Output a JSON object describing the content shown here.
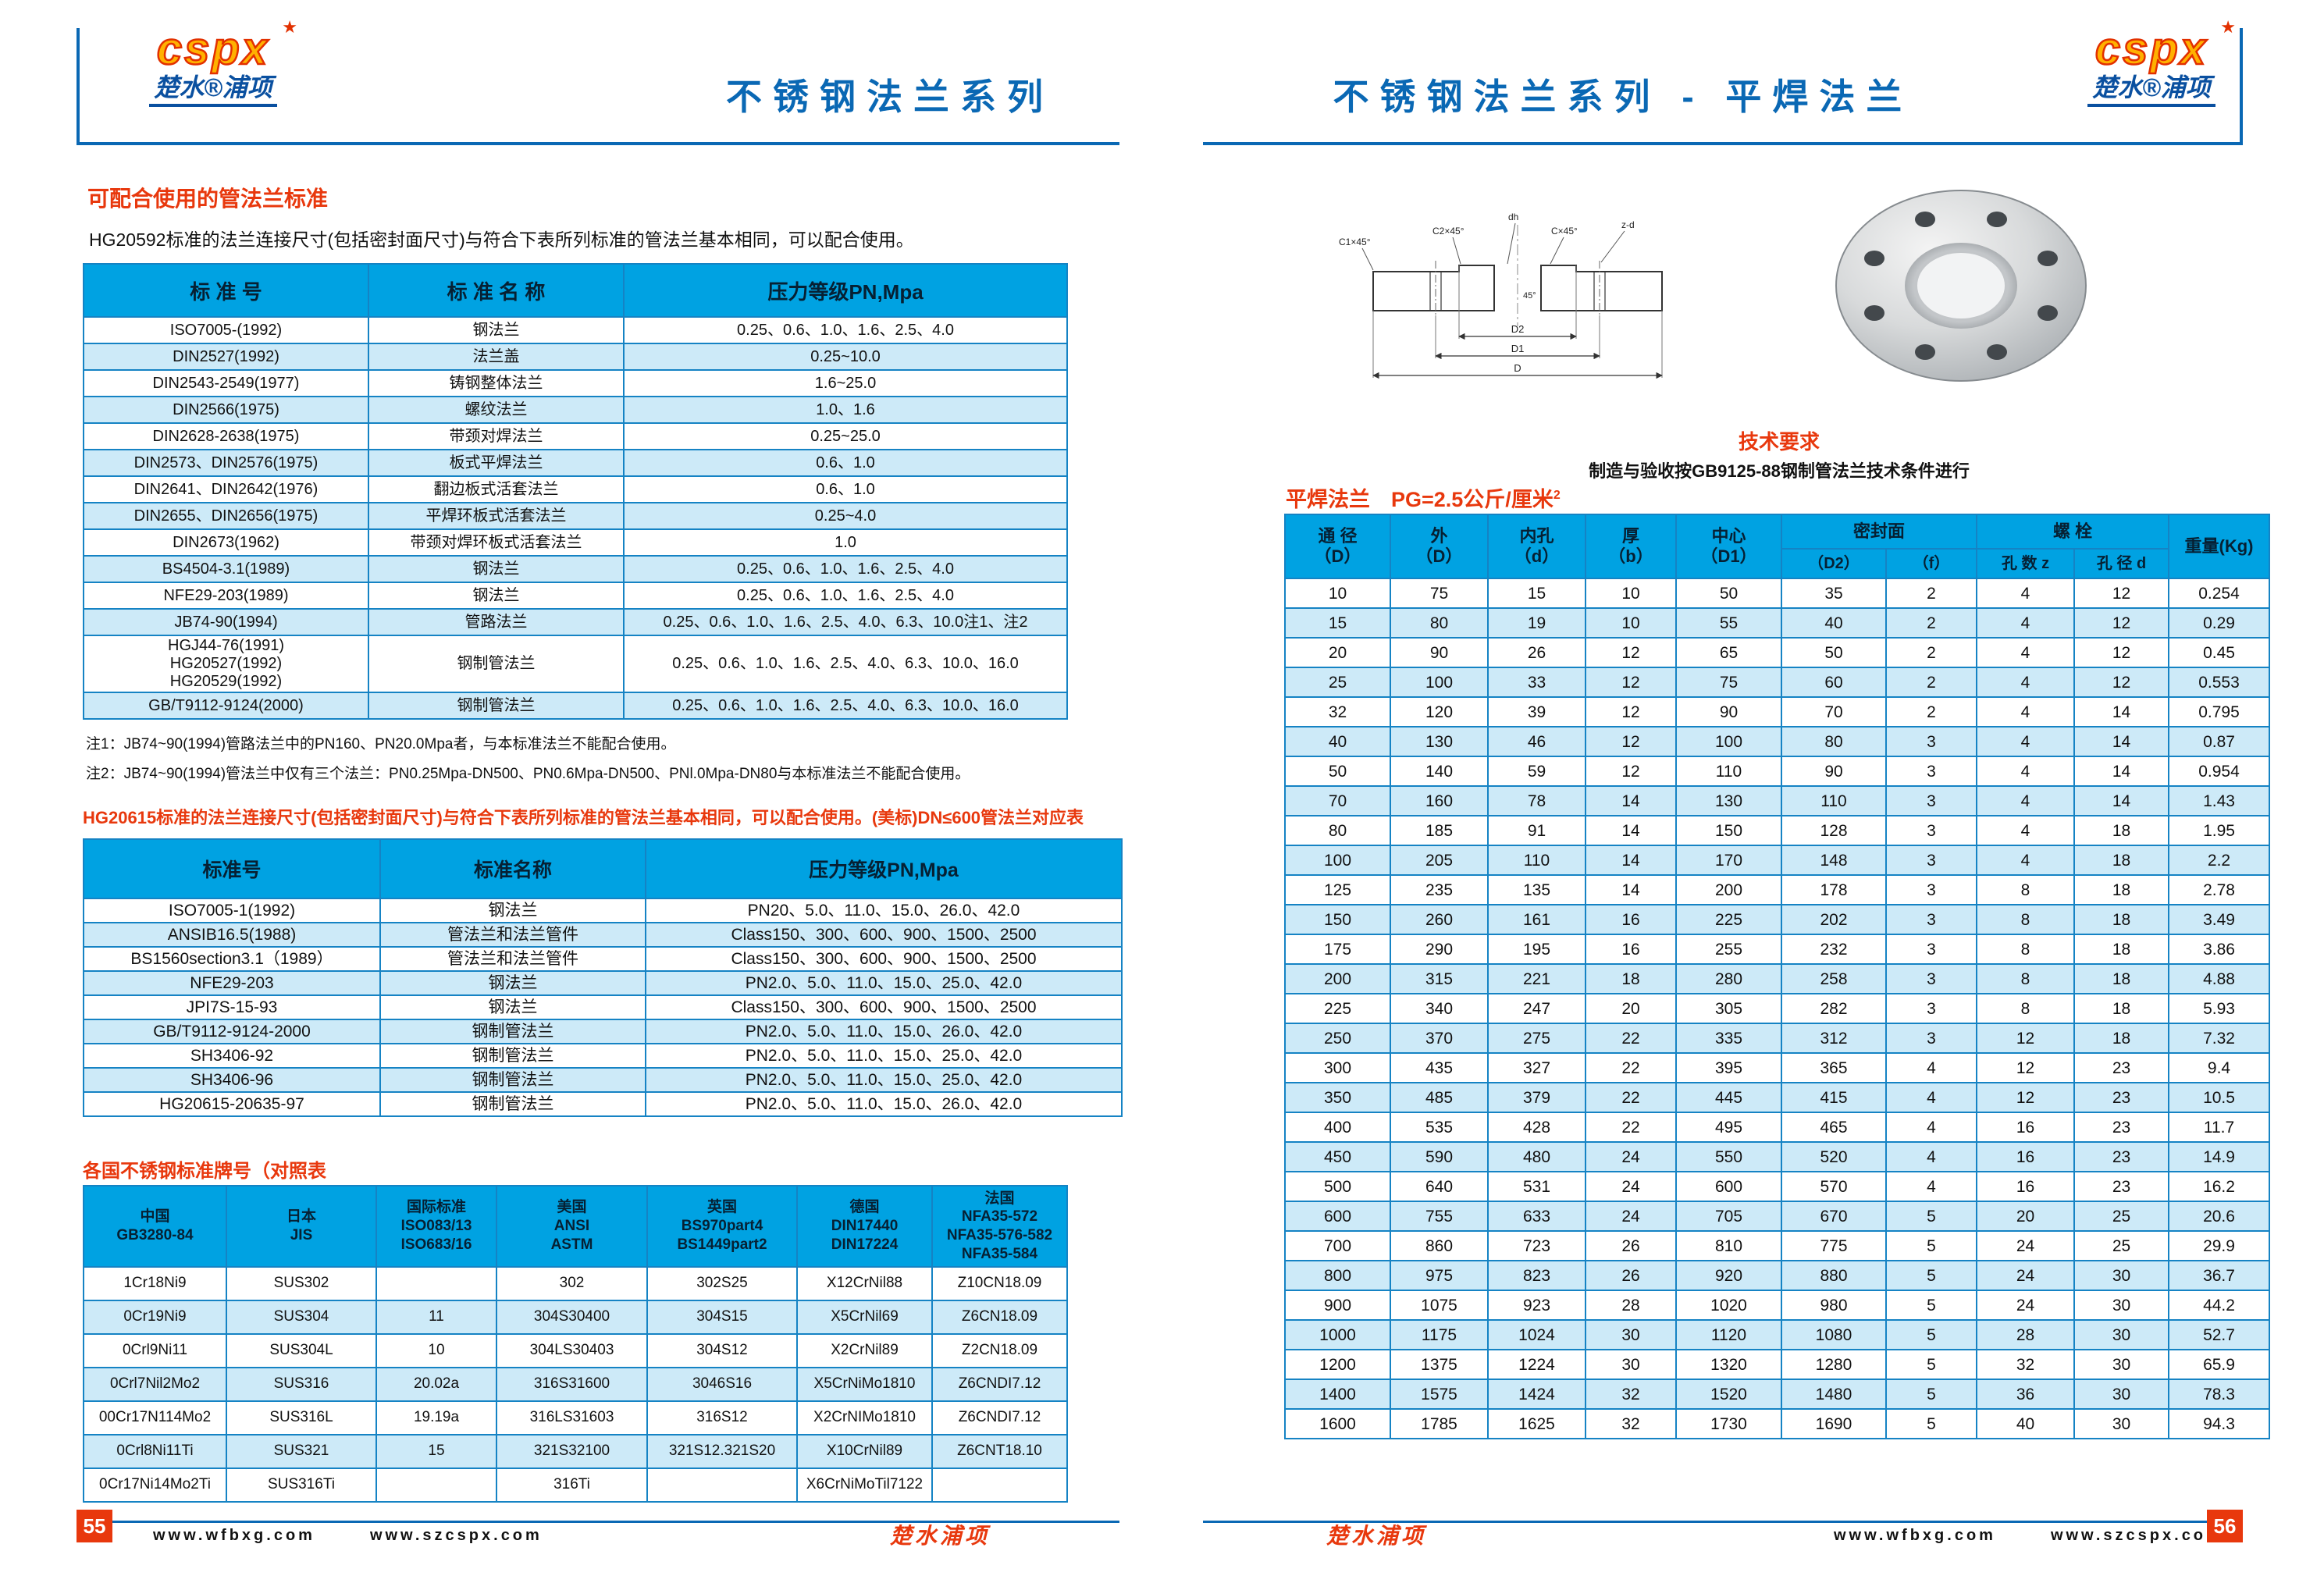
{
  "brand": {
    "logo_text": "cspx",
    "logo_star": "★",
    "logo_sub": "楚水®浦项",
    "footer_brand": "楚水浦项",
    "url1": "www.wfbxg.com",
    "url2": "www.szcspx.com"
  },
  "left": {
    "page_number": "55",
    "title": "不锈钢法兰系列",
    "section1": {
      "heading": "可配合使用的管法兰标准",
      "intro": "HG20592标准的法兰连接尺寸(包括密封面尺寸)与符合下表所列标准的管法兰基本相同，可以配合使用。",
      "headers": [
        "标  准  号",
        "标 准 名 称",
        "压力等级PN,Mpa"
      ],
      "rows": [
        [
          "ISO7005-(1992)",
          "钢法兰",
          "0.25、0.6、1.0、1.6、2.5、4.0"
        ],
        [
          "DIN2527(1992)",
          "法兰盖",
          "0.25~10.0"
        ],
        [
          "DIN2543-2549(1977)",
          "铸钢整体法兰",
          "1.6~25.0"
        ],
        [
          "DIN2566(1975)",
          "螺纹法兰",
          "1.0、1.6"
        ],
        [
          "DIN2628-2638(1975)",
          "带颈对焊法兰",
          "0.25~25.0"
        ],
        [
          "DIN2573、DIN2576(1975)",
          "板式平焊法兰",
          "0.6、1.0"
        ],
        [
          "DIN2641、DIN2642(1976)",
          "翻边板式活套法兰",
          "0.6、1.0"
        ],
        [
          "DIN2655、DIN2656(1975)",
          "平焊环板式活套法兰",
          "0.25~4.0"
        ],
        [
          "DIN2673(1962)",
          "带颈对焊环板式活套法兰",
          "1.0"
        ],
        [
          "BS4504-3.1(1989)",
          "钢法兰",
          "0.25、0.6、1.0、1.6、2.5、4.0"
        ],
        [
          "NFE29-203(1989)",
          "钢法兰",
          "0.25、0.6、1.0、1.6、2.5、4.0"
        ],
        [
          "JB74-90(1994)",
          "管路法兰",
          "0.25、0.6、1.0、1.6、2.5、4.0、6.3、10.0注1、注2"
        ],
        [
          "HGJ44-76(1991)\nHG20527(1992)\nHG20529(1992)",
          "钢制管法兰",
          "0.25、0.6、1.0、1.6、2.5、4.0、6.3、10.0、16.0"
        ],
        [
          "GB/T9112-9124(2000)",
          "钢制管法兰",
          "0.25、0.6、1.0、1.6、2.5、4.0、6.3、10.0、16.0"
        ]
      ],
      "note1": "注1：JB74~90(1994)管路法兰中的PN160、PN20.0Mpa者，与本标准法兰不能配合使用。",
      "note2": "注2：JB74~90(1994)管法兰中仅有三个法兰：PN0.25Mpa-DN500、PN0.6Mpa-DN500、PNl.0Mpa-DN80与本标准法兰不能配合使用。"
    },
    "section2": {
      "heading": "HG20615标准的法兰连接尺寸(包括密封面尺寸)与符合下表所列标准的管法兰基本相同，可以配合使用。(美标)DN≤600管法兰对应表",
      "headers": [
        "标准号",
        "标准名称",
        "压力等级PN,Mpa"
      ],
      "rows": [
        [
          "ISO7005-1(1992)",
          "钢法兰",
          "PN20、5.0、11.0、15.0、26.0、42.0"
        ],
        [
          "ANSIB16.5(1988)",
          "管法兰和法兰管件",
          "Class150、300、600、900、1500、2500"
        ],
        [
          "BS1560section3.1（1989）",
          "管法兰和法兰管件",
          "Class150、300、600、900、1500、2500"
        ],
        [
          "NFE29-203",
          "钢法兰",
          "PN2.0、5.0、11.0、15.0、25.0、42.0"
        ],
        [
          "JPI7S-15-93",
          "钢法兰",
          "Class150、300、600、900、1500、2500"
        ],
        [
          "GB/T9112-9124-2000",
          "钢制管法兰",
          "PN2.0、5.0、11.0、15.0、26.0、42.0"
        ],
        [
          "SH3406-92",
          "钢制管法兰",
          "PN2.0、5.0、11.0、15.0、25.0、42.0"
        ],
        [
          "SH3406-96",
          "钢制管法兰",
          "PN2.0、5.0、11.0、15.0、25.0、42.0"
        ],
        [
          "HG20615-20635-97",
          "钢制管法兰",
          "PN2.0、5.0、11.0、15.0、26.0、42.0"
        ]
      ]
    },
    "section3": {
      "heading": "各国不锈钢标准牌号（对照表",
      "headers": [
        "中国\nGB3280-84",
        "日本\nJIS",
        "国际标准\nISO083/13\nISO683/16",
        "美国\nANSI\nASTM",
        "英国\nBS970part4\nBS1449part2",
        "德国\nDIN17440\nDIN17224",
        "法国\nNFA35-572\nNFA35-576-582\nNFA35-584"
      ],
      "rows": [
        [
          "1Cr18Ni9",
          "SUS302",
          "",
          "302",
          "302S25",
          "X12CrNil88",
          "Z10CN18.09"
        ],
        [
          "0Cr19Ni9",
          "SUS304",
          "11",
          "304S30400",
          "304S15",
          "X5CrNil69",
          "Z6CN18.09"
        ],
        [
          "0Crl9Ni11",
          "SUS304L",
          "10",
          "304LS30403",
          "304S12",
          "X2CrNil89",
          "Z2CN18.09"
        ],
        [
          "0Crl7Nil2Mo2",
          "SUS316",
          "20.02a",
          "316S31600",
          "3046S16",
          "X5CrNiMo1810",
          "Z6CNDI7.12"
        ],
        [
          "00Cr17N114Mo2",
          "SUS316L",
          "19.19a",
          "316LS31603",
          "316S12",
          "X2CrNIMo1810",
          "Z6CNDI7.12"
        ],
        [
          "0Crl8Ni11Ti",
          "SUS321",
          "15",
          "321S32100",
          "321S12.321S20",
          "X10CrNil89",
          "Z6CNT18.10"
        ],
        [
          "0Cr17Ni14Mo2Ti",
          "SUS316Ti",
          "",
          "316Ti",
          "",
          "X6CrNiMoTil7122",
          ""
        ]
      ]
    }
  },
  "right": {
    "page_number": "56",
    "title": "不锈钢法兰系列 - 平焊法兰",
    "tech_heading": "技术要求",
    "tech_text": "制造与验收按GB9125-88钢制管法兰技术条件进行",
    "table_heading": "平焊法兰　PG=2.5公斤/厘米",
    "table_heading_sup": "2",
    "drawing": {
      "dh": "dh",
      "zd": "z-d",
      "c1": "C1×45°",
      "c2": "C2×45°",
      "c": "C×45°",
      "deg": "45°",
      "d2": "D2",
      "d1": "D1",
      "d": "D"
    },
    "table": {
      "h_dn": "通 径\n（D）",
      "h_od": "外\n（D）",
      "h_id": "内孔\n（d）",
      "h_b": "厚\n（b）",
      "h_d1": "中心\n（D1）",
      "h_seal": "密封面",
      "h_d2": "（D2）",
      "h_f": "（f）",
      "h_bolt": "螺 栓",
      "h_zn": "孔 数 z",
      "h_zd": "孔 径 d",
      "h_wt": "重量(Kg)",
      "rows": [
        [
          "10",
          "75",
          "15",
          "10",
          "50",
          "35",
          "2",
          "4",
          "12",
          "0.254"
        ],
        [
          "15",
          "80",
          "19",
          "10",
          "55",
          "40",
          "2",
          "4",
          "12",
          "0.29"
        ],
        [
          "20",
          "90",
          "26",
          "12",
          "65",
          "50",
          "2",
          "4",
          "12",
          "0.45"
        ],
        [
          "25",
          "100",
          "33",
          "12",
          "75",
          "60",
          "2",
          "4",
          "12",
          "0.553"
        ],
        [
          "32",
          "120",
          "39",
          "12",
          "90",
          "70",
          "2",
          "4",
          "14",
          "0.795"
        ],
        [
          "40",
          "130",
          "46",
          "12",
          "100",
          "80",
          "3",
          "4",
          "14",
          "0.87"
        ],
        [
          "50",
          "140",
          "59",
          "12",
          "110",
          "90",
          "3",
          "4",
          "14",
          "0.954"
        ],
        [
          "70",
          "160",
          "78",
          "14",
          "130",
          "110",
          "3",
          "4",
          "14",
          "1.43"
        ],
        [
          "80",
          "185",
          "91",
          "14",
          "150",
          "128",
          "3",
          "4",
          "18",
          "1.95"
        ],
        [
          "100",
          "205",
          "110",
          "14",
          "170",
          "148",
          "3",
          "4",
          "18",
          "2.2"
        ],
        [
          "125",
          "235",
          "135",
          "14",
          "200",
          "178",
          "3",
          "8",
          "18",
          "2.78"
        ],
        [
          "150",
          "260",
          "161",
          "16",
          "225",
          "202",
          "3",
          "8",
          "18",
          "3.49"
        ],
        [
          "175",
          "290",
          "195",
          "16",
          "255",
          "232",
          "3",
          "8",
          "18",
          "3.86"
        ],
        [
          "200",
          "315",
          "221",
          "18",
          "280",
          "258",
          "3",
          "8",
          "18",
          "4.88"
        ],
        [
          "225",
          "340",
          "247",
          "20",
          "305",
          "282",
          "3",
          "8",
          "18",
          "5.93"
        ],
        [
          "250",
          "370",
          "275",
          "22",
          "335",
          "312",
          "3",
          "12",
          "18",
          "7.32"
        ],
        [
          "300",
          "435",
          "327",
          "22",
          "395",
          "365",
          "4",
          "12",
          "23",
          "9.4"
        ],
        [
          "350",
          "485",
          "379",
          "22",
          "445",
          "415",
          "4",
          "12",
          "23",
          "10.5"
        ],
        [
          "400",
          "535",
          "428",
          "22",
          "495",
          "465",
          "4",
          "16",
          "23",
          "11.7"
        ],
        [
          "450",
          "590",
          "480",
          "24",
          "550",
          "520",
          "4",
          "16",
          "23",
          "14.9"
        ],
        [
          "500",
          "640",
          "531",
          "24",
          "600",
          "570",
          "4",
          "16",
          "23",
          "16.2"
        ],
        [
          "600",
          "755",
          "633",
          "24",
          "705",
          "670",
          "5",
          "20",
          "25",
          "20.6"
        ],
        [
          "700",
          "860",
          "723",
          "26",
          "810",
          "775",
          "5",
          "24",
          "25",
          "29.9"
        ],
        [
          "800",
          "975",
          "823",
          "26",
          "920",
          "880",
          "5",
          "24",
          "30",
          "36.7"
        ],
        [
          "900",
          "1075",
          "923",
          "28",
          "1020",
          "980",
          "5",
          "24",
          "30",
          "44.2"
        ],
        [
          "1000",
          "1175",
          "1024",
          "30",
          "1120",
          "1080",
          "5",
          "28",
          "30",
          "52.7"
        ],
        [
          "1200",
          "1375",
          "1224",
          "30",
          "1320",
          "1280",
          "5",
          "32",
          "30",
          "65.9"
        ],
        [
          "1400",
          "1575",
          "1424",
          "32",
          "1520",
          "1480",
          "5",
          "36",
          "30",
          "78.3"
        ],
        [
          "1600",
          "1785",
          "1625",
          "32",
          "1730",
          "1690",
          "5",
          "40",
          "30",
          "94.3"
        ]
      ]
    }
  }
}
